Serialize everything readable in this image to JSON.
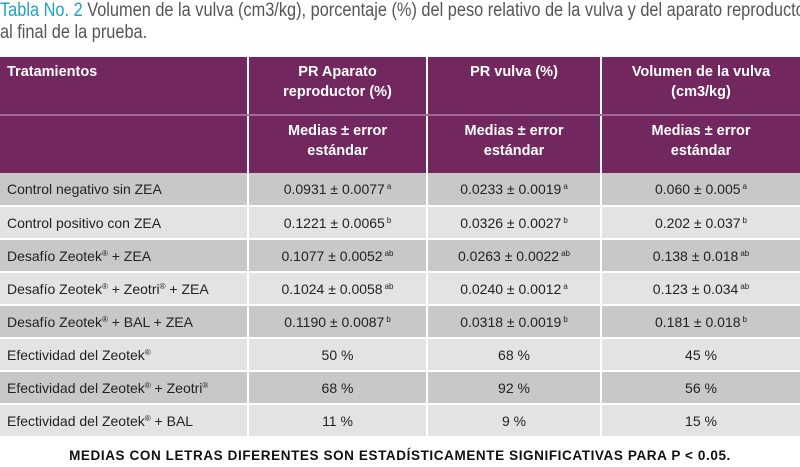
{
  "caption": {
    "label": "Tabla No. 2",
    "text_line1": " Volumen de la vulva (cm3/kg), porcentaje (%) del peso relativo de la vulva y del aparato reproductor",
    "text_line2": "al final de la prueba."
  },
  "table": {
    "headers": [
      "Tratamientos",
      "PR Aparato reproductor (%)",
      "PR vulva (%)",
      "Volumen de la vulva (cm3/kg)"
    ],
    "header_lines": {
      "col1": [
        "PR Aparato",
        "reproductor (%)"
      ],
      "col2": [
        "PR vulva (%)"
      ],
      "col3": [
        "Volumen de la vulva",
        "(cm3/kg)"
      ]
    },
    "subheader_lines": [
      "Medias ± error",
      "estándar"
    ],
    "rows": [
      {
        "label": "Control negativo sin ZEA",
        "c1": "0.0931 ± 0.0077",
        "c1s": "a",
        "c2": "0.0233 ± 0.0019",
        "c2s": "a",
        "c3": "0.060 ± 0.005",
        "c3s": "a"
      },
      {
        "label": "Control positivo con ZEA",
        "c1": "0.1221 ± 0.0065",
        "c1s": "b",
        "c2": "0.0326 ± 0.0027",
        "c2s": "b",
        "c3": "0.202 ± 0.037",
        "c3s": "b"
      },
      {
        "label_parts": [
          "Desafío Zeotek",
          "®",
          " + ZEA"
        ],
        "c1": "0.1077 ± 0.0052",
        "c1s": "ab",
        "c2": "0.0263 ± 0.0022",
        "c2s": "ab",
        "c3": "0.138 ± 0.018",
        "c3s": "ab"
      },
      {
        "label_parts": [
          "Desafío Zeotek",
          "®",
          " + Zeotri",
          "®",
          " + ZEA"
        ],
        "c1": "0.1024 ± 0.0058",
        "c1s": "ab",
        "c2": "0.0240 ± 0.0012",
        "c2s": "a",
        "c3": "0.123 ± 0.034",
        "c3s": "ab"
      },
      {
        "label_parts": [
          "Desafío Zeotek",
          "®",
          " + BAL + ZEA"
        ],
        "c1": "0.1190 ± 0.0087",
        "c1s": "b",
        "c2": "0.0318 ± 0.0019",
        "c2s": "b",
        "c3": "0.181 ± 0.018",
        "c3s": "b"
      },
      {
        "label_parts": [
          "Efectividad del  Zeotek",
          "®"
        ],
        "c1": "50 %",
        "c2": "68 %",
        "c3": "45 %"
      },
      {
        "label_parts": [
          "Efectividad del  Zeotek",
          "®",
          " + Zeotri",
          "®"
        ],
        "c1": "68 %",
        "c2": "92 %",
        "c3": "56 %"
      },
      {
        "label_parts": [
          "Efectividad del Zeotek",
          "®",
          " + BAL"
        ],
        "c1": "11 %",
        "c2": "9 %",
        "c3": "15 %"
      }
    ]
  },
  "footnote": "MEDIAS CON LETRAS DIFERENTES SON ESTADÍSTICAMENTE SIGNIFICATIVAS PARA P < 0.05.",
  "colors": {
    "header_bg": "#73275f",
    "row_dark": "#c8c8c8",
    "row_light": "#e3e3e3",
    "caption_label": "#1ba4c9",
    "caption_text": "#555555"
  }
}
